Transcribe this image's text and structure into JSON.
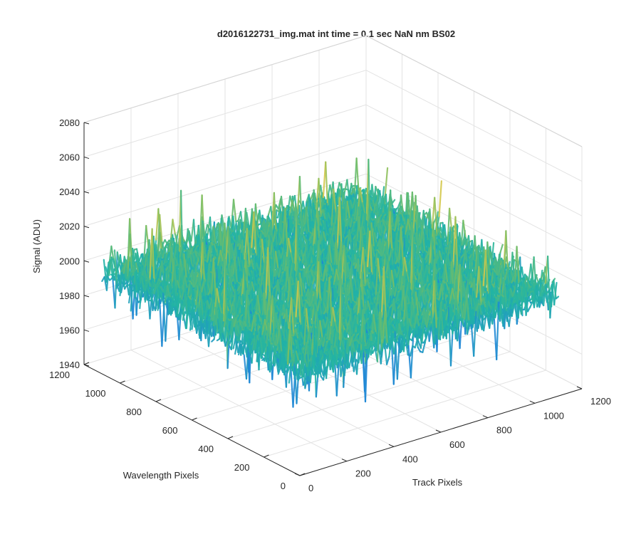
{
  "chart_data": {
    "type": "surface",
    "title": "d2016122731_img.mat int time = 0.1 sec  NaN nm BS02",
    "xlabel": "Track Pixels",
    "ylabel": "Wavelength Pixels",
    "zlabel": "Signal (ADU)",
    "xlim": [
      0,
      1200
    ],
    "ylim": [
      0,
      1200
    ],
    "zlim": [
      1940,
      2080
    ],
    "x_ticks": [
      "0",
      "200",
      "400",
      "600",
      "800",
      "1000",
      "1200"
    ],
    "y_ticks": [
      "0",
      "200",
      "400",
      "600",
      "800",
      "1000",
      "1200"
    ],
    "z_ticks": [
      "1940",
      "1960",
      "1980",
      "2000",
      "2020",
      "2040",
      "2060",
      "2080"
    ],
    "grid": true,
    "colormap": "parula",
    "surface": {
      "x_range": [
        0,
        1100
      ],
      "y_range": [
        0,
        1100
      ],
      "z_mean": 2000,
      "z_typical_range": [
        1985,
        2020
      ],
      "z_extremes": [
        1942,
        2070
      ]
    },
    "colors": {
      "low": "#1f88d6",
      "mid": "#22b5a4",
      "high": "#d9c94a",
      "axis": "#262626",
      "grid": "#e3e3e3"
    }
  }
}
